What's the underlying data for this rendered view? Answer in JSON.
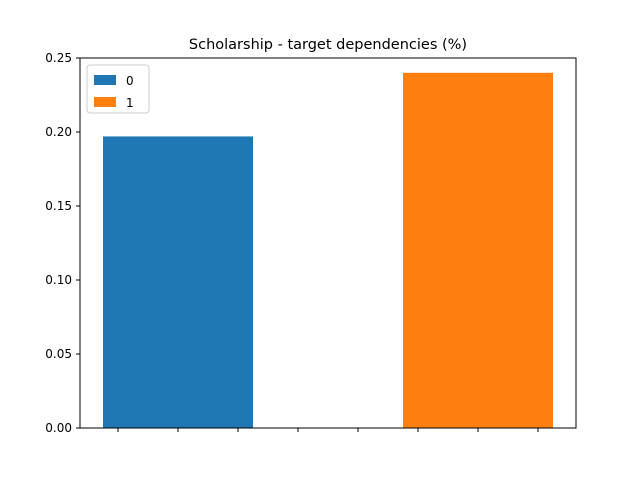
{
  "chart_data": {
    "type": "bar",
    "title": "Scholarship - target dependencies (%)",
    "xlabel": "",
    "ylabel": "",
    "ylim": [
      0,
      0.25
    ],
    "yticks": [
      {
        "value": 0.0,
        "label": "0.00"
      },
      {
        "value": 0.05,
        "label": "0.05"
      },
      {
        "value": 0.1,
        "label": "0.10"
      },
      {
        "value": 0.15,
        "label": "0.15"
      },
      {
        "value": 0.2,
        "label": "0.20"
      },
      {
        "value": 0.25,
        "label": "0.25"
      }
    ],
    "x_tick_count": 8,
    "x_tick_labels": [],
    "grid": false,
    "legend_position": "top-left",
    "series": [
      {
        "name": "0",
        "value": 0.197,
        "color": "#1f77b4"
      },
      {
        "name": "1",
        "value": 0.24,
        "color": "#ff7f0e"
      }
    ]
  }
}
